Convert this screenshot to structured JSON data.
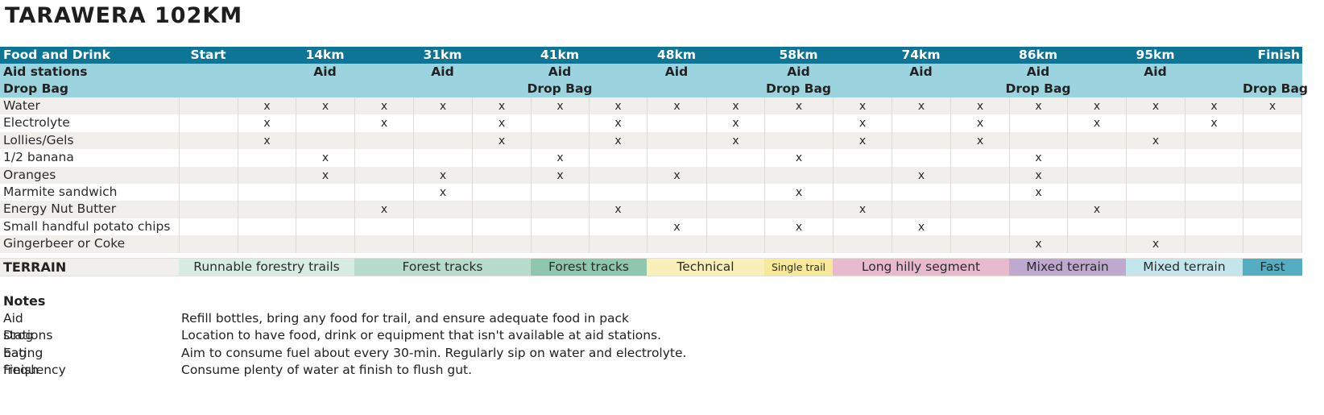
{
  "title": "TARAWERA 102KM",
  "colors": {
    "header_bg": "#0f7597",
    "subheader_bg": "#9bd3df",
    "row_alt_bg": "#f1efec",
    "row_bg": "#ffffff"
  },
  "columns": {
    "edges": [
      222,
      295,
      367,
      440,
      513,
      586,
      659,
      731,
      803,
      877,
      949,
      1034,
      1107,
      1180,
      1253,
      1325,
      1398,
      1471,
      1543,
      1617
    ]
  },
  "header": {
    "label": "Food and Drink",
    "checkpoints": [
      {
        "label": "Start",
        "col": 1,
        "aid": "",
        "drop_bag": ""
      },
      {
        "label": "14km",
        "col": 3,
        "aid": "Aid",
        "drop_bag": ""
      },
      {
        "label": "31km",
        "col": 5,
        "aid": "Aid",
        "drop_bag": ""
      },
      {
        "label": "41km",
        "col": 7,
        "aid": "Aid",
        "drop_bag": "Drop Bag"
      },
      {
        "label": "48km",
        "col": 9,
        "aid": "Aid",
        "drop_bag": ""
      },
      {
        "label": "58km",
        "col": 11,
        "aid": "Aid",
        "drop_bag": "Drop Bag"
      },
      {
        "label": "74km",
        "col": 13,
        "aid": "Aid",
        "drop_bag": ""
      },
      {
        "label": "86km",
        "col": 15,
        "aid": "Aid",
        "drop_bag": "Drop Bag"
      },
      {
        "label": "95km",
        "col": 17,
        "aid": "Aid",
        "drop_bag": ""
      },
      {
        "label": "Finish",
        "col": 19,
        "aid": "",
        "drop_bag": "Drop Bag"
      }
    ]
  },
  "aid_row_label": "Aid stations",
  "drop_bag_row_label": "Drop Bag",
  "mark": "x",
  "items": [
    {
      "name": "Water",
      "cols": [
        2,
        3,
        4,
        5,
        6,
        7,
        8,
        9,
        10,
        11,
        12,
        13,
        14,
        15,
        16,
        17,
        18,
        19
      ]
    },
    {
      "name": "Electrolyte",
      "cols": [
        2,
        4,
        6,
        8,
        10,
        12,
        14,
        16,
        18
      ]
    },
    {
      "name": "Lollies/Gels",
      "cols": [
        2,
        6,
        8,
        10,
        12,
        14,
        17
      ]
    },
    {
      "name": "1/2 banana",
      "cols": [
        3,
        7,
        11,
        15
      ]
    },
    {
      "name": "Oranges",
      "cols": [
        3,
        5,
        7,
        9,
        13,
        15
      ]
    },
    {
      "name": "Marmite sandwich",
      "cols": [
        5,
        11,
        15
      ]
    },
    {
      "name": "Energy Nut Butter",
      "cols": [
        4,
        8,
        12,
        16
      ]
    },
    {
      "name": "Small handful potato chips",
      "cols": [
        9,
        11,
        13
      ]
    },
    {
      "name": "Gingerbeer or Coke",
      "cols": [
        15,
        17
      ]
    }
  ],
  "terrain": {
    "label": "TERRAIN",
    "segments": [
      {
        "label": "Runnable forestry trails",
        "from": 1,
        "to": 3,
        "color": "#d7ece3",
        "small": false
      },
      {
        "label": "Forest tracks",
        "from": 4,
        "to": 6,
        "color": "#b7dccb",
        "small": false
      },
      {
        "label": "Forest tracks",
        "from": 7,
        "to": 8,
        "color": "#8ec7ad",
        "small": false
      },
      {
        "label": "Technical",
        "from": 9,
        "to": 10,
        "color": "#f8f0b8",
        "small": false
      },
      {
        "label": "Single trail",
        "from": 11,
        "to": 11,
        "color": "#f6e99a",
        "small": true
      },
      {
        "label": "Long hilly segment",
        "from": 12,
        "to": 14,
        "color": "#e9b9cd",
        "small": false
      },
      {
        "label": "Mixed terrain",
        "from": 15,
        "to": 16,
        "color": "#c0a9cf",
        "small": false
      },
      {
        "label": "Mixed terrain",
        "from": 17,
        "to": 18,
        "color": "#c3e5ec",
        "small": false
      },
      {
        "label": "Fast",
        "from": 19,
        "to": 19,
        "color": "#55adc2",
        "small": false
      }
    ]
  },
  "notes": {
    "title": "Notes",
    "rows": [
      {
        "key": "Aid stations",
        "value": "Refill bottles, bring any food for trail, and ensure adequate food in pack"
      },
      {
        "key": "Drog bag",
        "value": "Location to have food, drink or equipment that isn't available at aid stations."
      },
      {
        "key": "Eating frequency",
        "value": "Aim to consume fuel about every 30-min. Regularly sip on water and electrolyte."
      },
      {
        "key": "Finish",
        "value": "Consume plenty of water at finish to flush gut."
      }
    ]
  }
}
